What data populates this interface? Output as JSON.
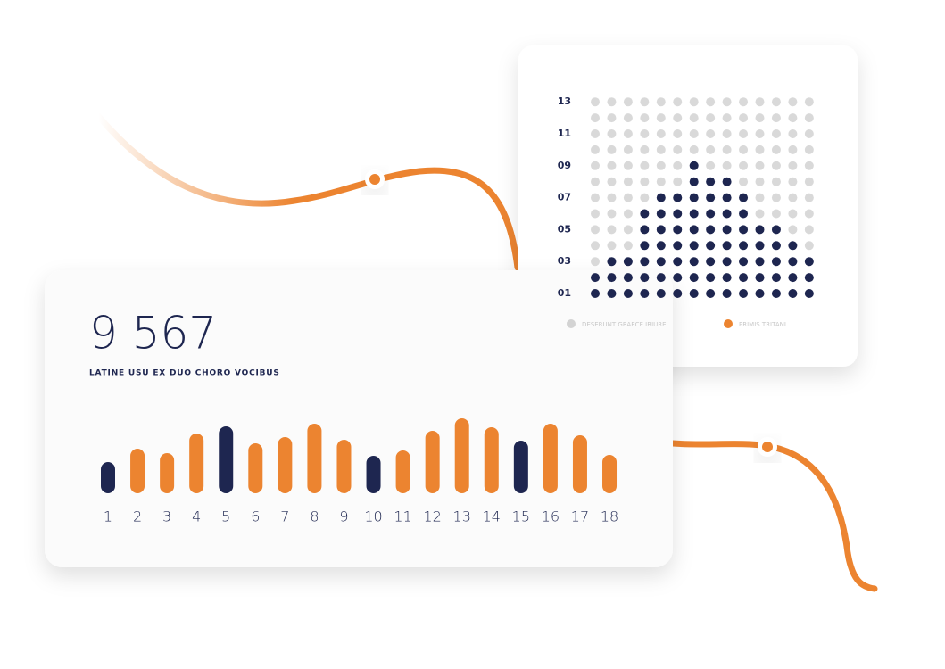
{
  "chart_data": [
    {
      "type": "bar",
      "title": "9 567",
      "subtitle": "LATINE USU EX DUO CHORO VOCIBUS",
      "categories": [
        "1",
        "2",
        "3",
        "4",
        "5",
        "6",
        "7",
        "8",
        "9",
        "10",
        "11",
        "12",
        "13",
        "14",
        "15",
        "16",
        "17",
        "18"
      ],
      "values": [
        35,
        50,
        45,
        67,
        75,
        56,
        63,
        78,
        60,
        42,
        48,
        70,
        84,
        74,
        59,
        78,
        65,
        43
      ],
      "colors": [
        "#1e2650",
        "#ec8430",
        "#ec8430",
        "#ec8430",
        "#1e2650",
        "#ec8430",
        "#ec8430",
        "#ec8430",
        "#ec8430",
        "#1e2650",
        "#ec8430",
        "#ec8430",
        "#ec8430",
        "#ec8430",
        "#1e2650",
        "#ec8430",
        "#ec8430",
        "#ec8430"
      ]
    },
    {
      "type": "dot-matrix",
      "values": [
        2,
        3,
        3,
        6,
        7,
        7,
        9,
        8,
        8,
        7,
        5,
        5,
        4,
        3
      ],
      "ylim": [
        1,
        13
      ],
      "yticks": [
        {
          "value": 13,
          "label": "13"
        },
        {
          "value": 11,
          "label": "11"
        },
        {
          "value": 9,
          "label": "09"
        },
        {
          "value": 7,
          "label": "07"
        },
        {
          "value": 5,
          "label": "05"
        },
        {
          "value": 3,
          "label": "03"
        },
        {
          "value": 1,
          "label": "01"
        }
      ],
      "fill_color": "#1e2650",
      "empty_color": "#d9d9d9",
      "legend": [
        {
          "name": "DESERUNT GRAECE IRIURE",
          "color": "#d3d3d3"
        },
        {
          "name": "PRIMIS TRITANI",
          "color": "#ec8430"
        }
      ]
    }
  ]
}
